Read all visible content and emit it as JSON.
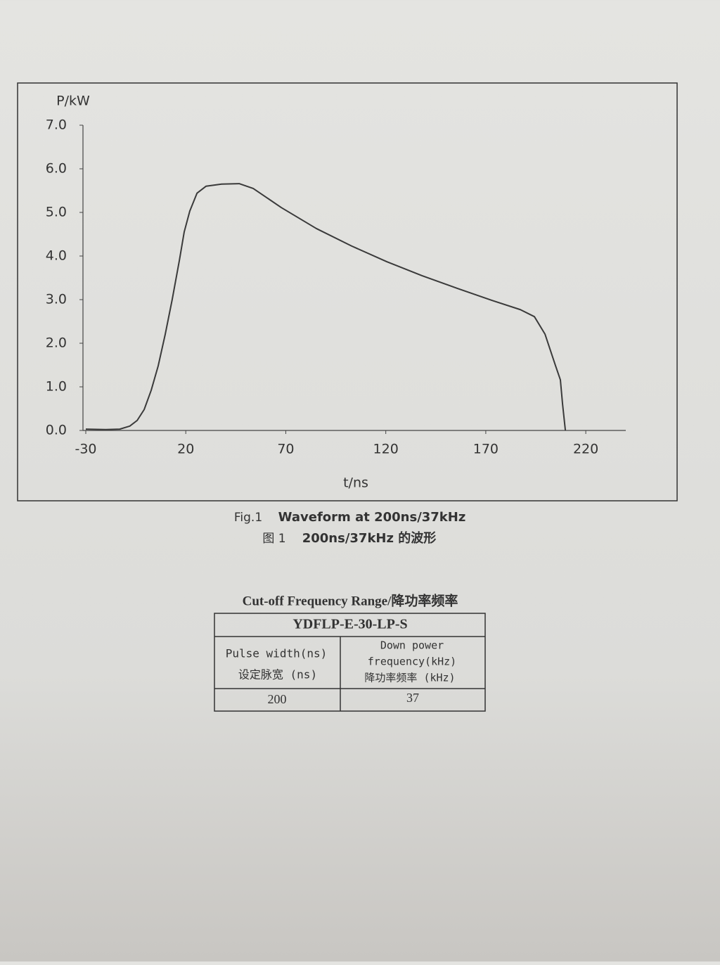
{
  "chart_data": {
    "type": "line",
    "x_label": "t/ns",
    "y_label": "P/kW",
    "x": [
      -30,
      -20,
      -13,
      -8,
      -4.3,
      -0.8,
      2.7,
      6.2,
      9.7,
      13.2,
      16.8,
      19.2,
      22,
      25.6,
      30.1,
      37.9,
      46.7,
      53.7,
      67.8,
      85.3,
      102.9,
      120.5,
      138.1,
      155.7,
      173.2,
      187.3,
      194.3,
      199.6,
      204.9,
      207.3,
      208.4,
      209.8
    ],
    "series": [
      {
        "name": "P",
        "color": "#3a3a3a",
        "values": [
          0.03,
          0.02,
          0.03,
          0.1,
          0.23,
          0.48,
          0.92,
          1.48,
          2.2,
          3.0,
          3.9,
          4.55,
          5.03,
          5.44,
          5.6,
          5.65,
          5.66,
          5.55,
          5.11,
          4.63,
          4.23,
          3.87,
          3.55,
          3.26,
          2.98,
          2.77,
          2.61,
          2.21,
          1.48,
          1.16,
          0.6,
          0
        ]
      }
    ],
    "xlim": [
      -30,
      240
    ],
    "xticks": [
      -30,
      20,
      70,
      120,
      170,
      220
    ],
    "ylim": [
      0,
      7
    ],
    "yticks": [
      {
        "value": 0,
        "label": "0.0"
      },
      {
        "value": 1,
        "label": "1.0"
      },
      {
        "value": 2,
        "label": "2.0"
      },
      {
        "value": 3,
        "label": "3.0"
      },
      {
        "value": 4,
        "label": "4.0"
      },
      {
        "value": 5,
        "label": "5.0"
      },
      {
        "value": 6,
        "label": "6.0"
      },
      {
        "value": 7,
        "label": "7.0"
      }
    ]
  },
  "caption": {
    "fig": "Fig.1",
    "title": "Waveform at 200ns/37kHz",
    "fig_cn": "图 1",
    "title_cn": "200ns/37kHz 的波形"
  },
  "table": {
    "title": "Cut-off Frequency Range/降功率频率",
    "model": "YDFLP-E-30-LP-S",
    "headers": [
      [
        "Pulse width(ns)",
        "设定脉宽 (ns)"
      ],
      [
        "Down power",
        "frequency(kHz)",
        "降功率频率 (kHz)"
      ]
    ],
    "rows": [
      [
        200,
        37
      ]
    ]
  }
}
